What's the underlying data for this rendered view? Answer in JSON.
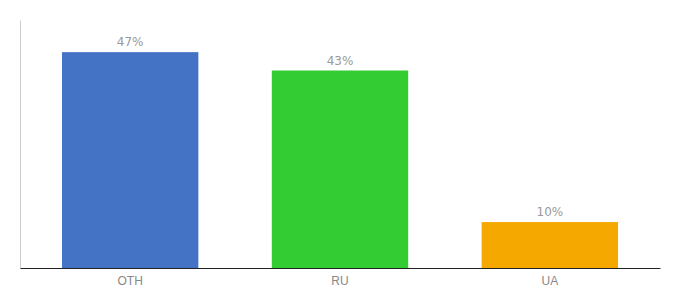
{
  "chart_data": {
    "type": "bar",
    "categories": [
      "OTH",
      "RU",
      "UA"
    ],
    "values": [
      47,
      43,
      10
    ],
    "value_labels": [
      "47%",
      "43%",
      "10%"
    ],
    "data_labels": true,
    "colors": [
      "#4472c4",
      "#33cc33",
      "#f5a800"
    ],
    "ylim": [
      0,
      54
    ],
    "tick_labels": "x"
  }
}
